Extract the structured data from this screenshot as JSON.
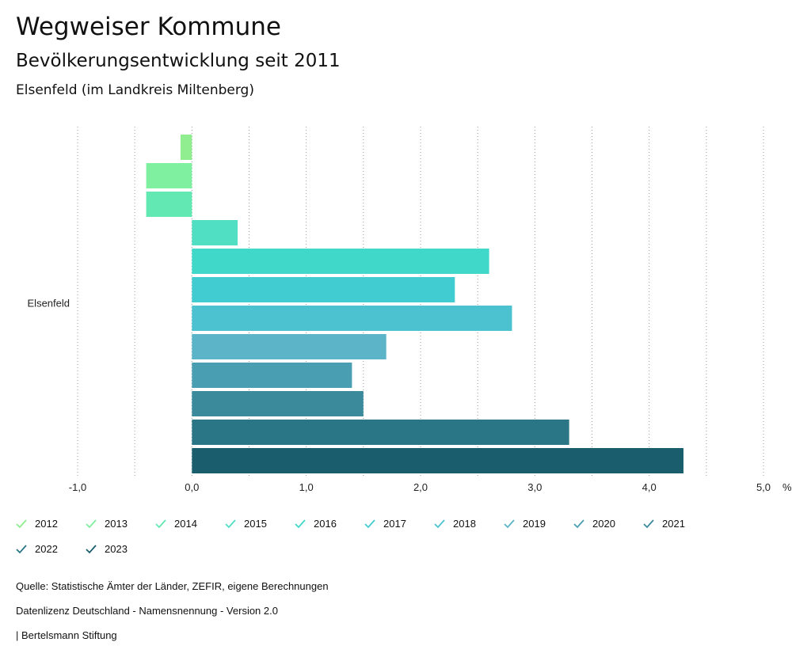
{
  "header": {
    "title": "Wegweiser Kommune",
    "subtitle": "Bevölkerungsentwicklung seit 2011",
    "region": "Elsenfeld (im Landkreis Miltenberg)"
  },
  "chart_data": {
    "type": "bar",
    "orientation": "horizontal",
    "category": "Elsenfeld",
    "series": [
      {
        "name": "2012",
        "value": -0.1,
        "color": "#90ee90"
      },
      {
        "name": "2013",
        "value": -0.4,
        "color": "#7ff0a0"
      },
      {
        "name": "2014",
        "value": -0.4,
        "color": "#62e8b2"
      },
      {
        "name": "2015",
        "value": 0.4,
        "color": "#50dfc2"
      },
      {
        "name": "2016",
        "value": 2.6,
        "color": "#40d8c8"
      },
      {
        "name": "2017",
        "value": 2.3,
        "color": "#40ccd0"
      },
      {
        "name": "2018",
        "value": 2.8,
        "color": "#4cc2d0"
      },
      {
        "name": "2019",
        "value": 1.7,
        "color": "#5cb4c8"
      },
      {
        "name": "2020",
        "value": 1.4,
        "color": "#4a9eb2"
      },
      {
        "name": "2021",
        "value": 1.5,
        "color": "#3a8a9c"
      },
      {
        "name": "2022",
        "value": 3.3,
        "color": "#2a7686"
      },
      {
        "name": "2023",
        "value": 4.3,
        "color": "#1a5e6e"
      }
    ],
    "xlim": [
      -1.0,
      5.0
    ],
    "ticks": [
      -1.0,
      0.0,
      1.0,
      2.0,
      3.0,
      4.0,
      5.0
    ],
    "tick_labels": [
      "-1,0",
      "0,0",
      "1,0",
      "2,0",
      "3,0",
      "4,0",
      "5,0"
    ],
    "unit": "%",
    "grid": true
  },
  "footer": {
    "source": "Quelle: Statistische Ämter der Länder, ZEFIR, eigene Berechnungen",
    "license": "Datenlizenz Deutschland - Namensnennung - Version 2.0",
    "publisher": "| Bertelsmann Stiftung"
  }
}
